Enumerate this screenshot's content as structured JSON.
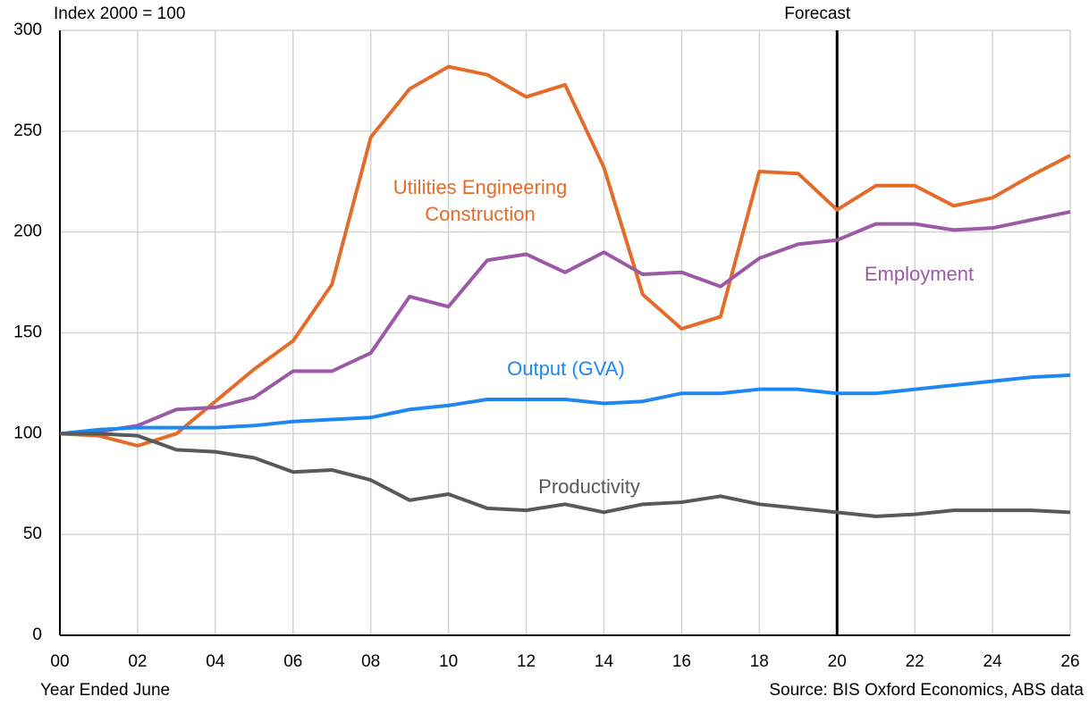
{
  "chart_data": {
    "type": "line",
    "y_label": "Index 2000 = 100",
    "x_label": "Year Ended June",
    "source": "Source: BIS Oxford Economics, ABS data",
    "forecast": {
      "label": "Forecast",
      "category": "20"
    },
    "categories": [
      "00",
      null,
      "02",
      null,
      "04",
      null,
      "06",
      null,
      "08",
      null,
      "10",
      null,
      "12",
      null,
      "14",
      null,
      "16",
      null,
      "18",
      null,
      "20",
      null,
      "22",
      null,
      "24",
      null,
      "26"
    ],
    "series": [
      {
        "name": "Utilities Engineering Construction",
        "color": "#e46c2a",
        "values": [
          100,
          99,
          94,
          100,
          116,
          132,
          146,
          174,
          247,
          271,
          282,
          278,
          267,
          273,
          232,
          169,
          152,
          158,
          230,
          229,
          211,
          223,
          223,
          213,
          217,
          228,
          238
        ]
      },
      {
        "name": "Employment",
        "color": "#9b59a6",
        "values": [
          100,
          101,
          104,
          112,
          113,
          118,
          131,
          131,
          140,
          168,
          163,
          186,
          189,
          180,
          190,
          179,
          180,
          173,
          187,
          194,
          196,
          204,
          204,
          201,
          202,
          206,
          210
        ]
      },
      {
        "name": "Output (GVA)",
        "color": "#1e88f0",
        "values": [
          100,
          102,
          103,
          103,
          103,
          104,
          106,
          107,
          108,
          112,
          114,
          117,
          117,
          117,
          115,
          116,
          120,
          120,
          122,
          122,
          120,
          120,
          122,
          124,
          126,
          128,
          129
        ]
      },
      {
        "name": "Productivity",
        "color": "#595959",
        "values": [
          100,
          100,
          99,
          92,
          91,
          88,
          81,
          82,
          77,
          67,
          70,
          63,
          62,
          65,
          61,
          65,
          66,
          69,
          65,
          63,
          61,
          59,
          60,
          62,
          62,
          62,
          61
        ]
      }
    ],
    "ylim": [
      0,
      300
    ],
    "yticks": [
      0,
      50,
      100,
      150,
      200,
      250,
      300
    ],
    "grid": true
  }
}
